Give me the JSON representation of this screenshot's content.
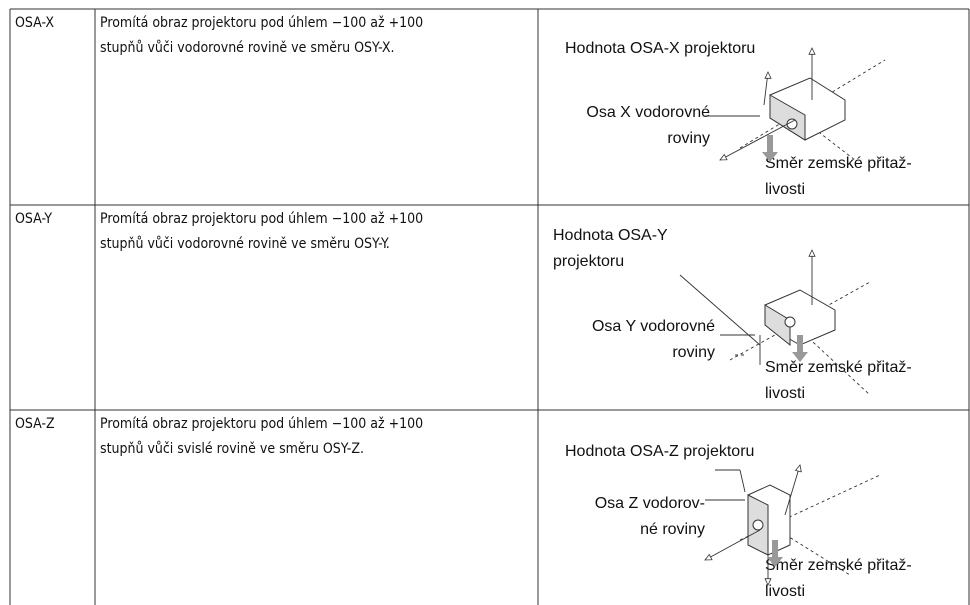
{
  "table": {
    "rows": [
      {
        "name": "OSA-X",
        "description": [
          "Promítá obraz projektoru pod úhlem −100 až +100",
          "stupňů vůči vodorovné rovině ve směru OSY-X."
        ],
        "diagram": {
          "value_label": [
            "Hodnota OSA-X projektoru"
          ],
          "axis_label": [
            "Osa X vodorovné",
            "roviny"
          ],
          "gravity_label": [
            "Směr zemské přitaž-",
            "livosti"
          ]
        }
      },
      {
        "name": "OSA-Y",
        "description": [
          "Promítá obraz projektoru pod úhlem −100 až +100",
          "stupňů vůči vodorovné rovině ve směru OSY-Y."
        ],
        "diagram": {
          "value_label": [
            "Hodnota OSA-Y",
            "projektoru"
          ],
          "axis_label": [
            "Osa Y vodorovné",
            "roviny"
          ],
          "gravity_label": [
            "Směr zemské přitaž-",
            "livosti"
          ]
        }
      },
      {
        "name": "OSA-Z",
        "description": [
          "Promítá obraz projektoru pod úhlem −100 až +100",
          "stupňů vůči svislé rovině ve směru OSY-Z."
        ],
        "diagram": {
          "value_label": [
            "Hodnota OSA-Z projektoru"
          ],
          "axis_label": [
            "Osa Z vodorov-",
            "né roviny"
          ],
          "gravity_label": [
            "Směr zemské přitaž-",
            "livosti"
          ]
        }
      }
    ]
  }
}
